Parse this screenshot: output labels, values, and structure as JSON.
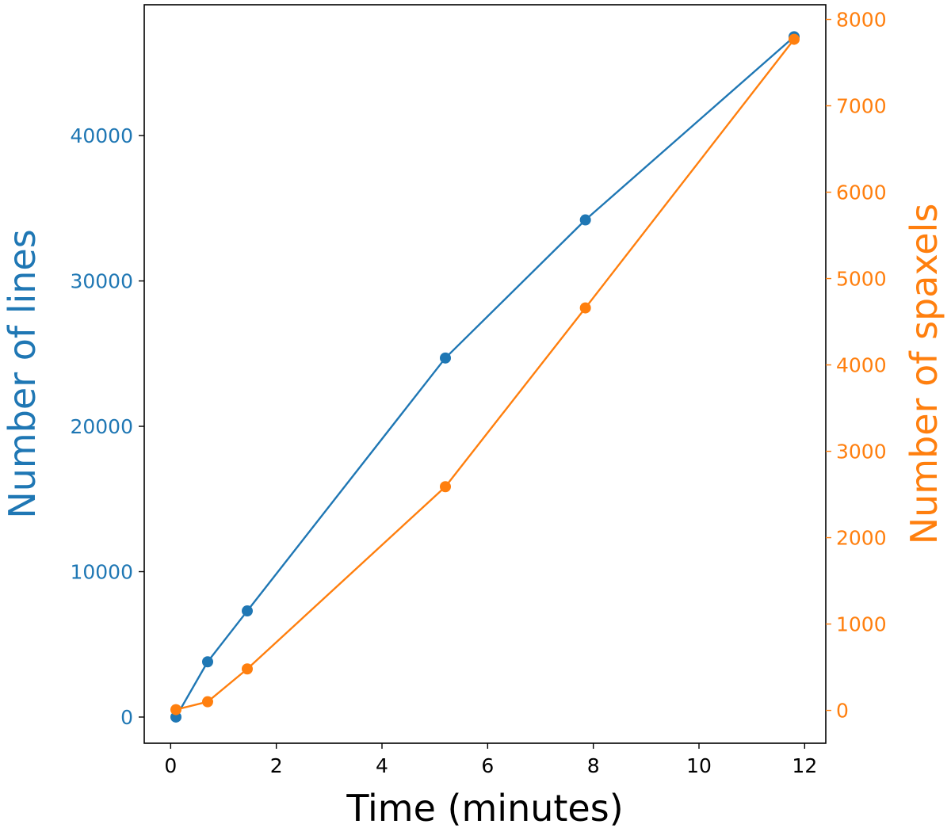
{
  "chart_data": {
    "type": "line",
    "title": "",
    "xlabel": "Time (minutes)",
    "ylabel_left": "Number of lines",
    "ylabel_right": "Number of spaxels",
    "xlim": [
      -0.5,
      12.4
    ],
    "ylim_left": [
      -1800,
      49000
    ],
    "ylim_right": [
      -380,
      8170
    ],
    "x_ticks": [
      0,
      2,
      4,
      6,
      8,
      10,
      12
    ],
    "y_ticks_left": [
      0,
      10000,
      20000,
      30000,
      40000
    ],
    "y_ticks_right": [
      0,
      1000,
      2000,
      3000,
      4000,
      5000,
      6000,
      7000,
      8000
    ],
    "grid": false,
    "legend": false,
    "series": [
      {
        "axis": "left",
        "color": "#1f77b4",
        "marker": "circle",
        "x": [
          0.1,
          0.7,
          1.45,
          5.2,
          7.85,
          11.8
        ],
        "y": [
          0,
          3800,
          7300,
          24700,
          34200,
          46800
        ]
      },
      {
        "axis": "right",
        "color": "#ff7f0e",
        "marker": "circle",
        "x": [
          0.1,
          0.7,
          1.45,
          5.2,
          7.85,
          11.8
        ],
        "y": [
          9,
          100,
          480,
          2590,
          4660,
          7770
        ]
      }
    ],
    "colors": {
      "left_axis": "#1f77b4",
      "right_axis": "#ff7f0e",
      "x_axis": "#000000"
    }
  }
}
